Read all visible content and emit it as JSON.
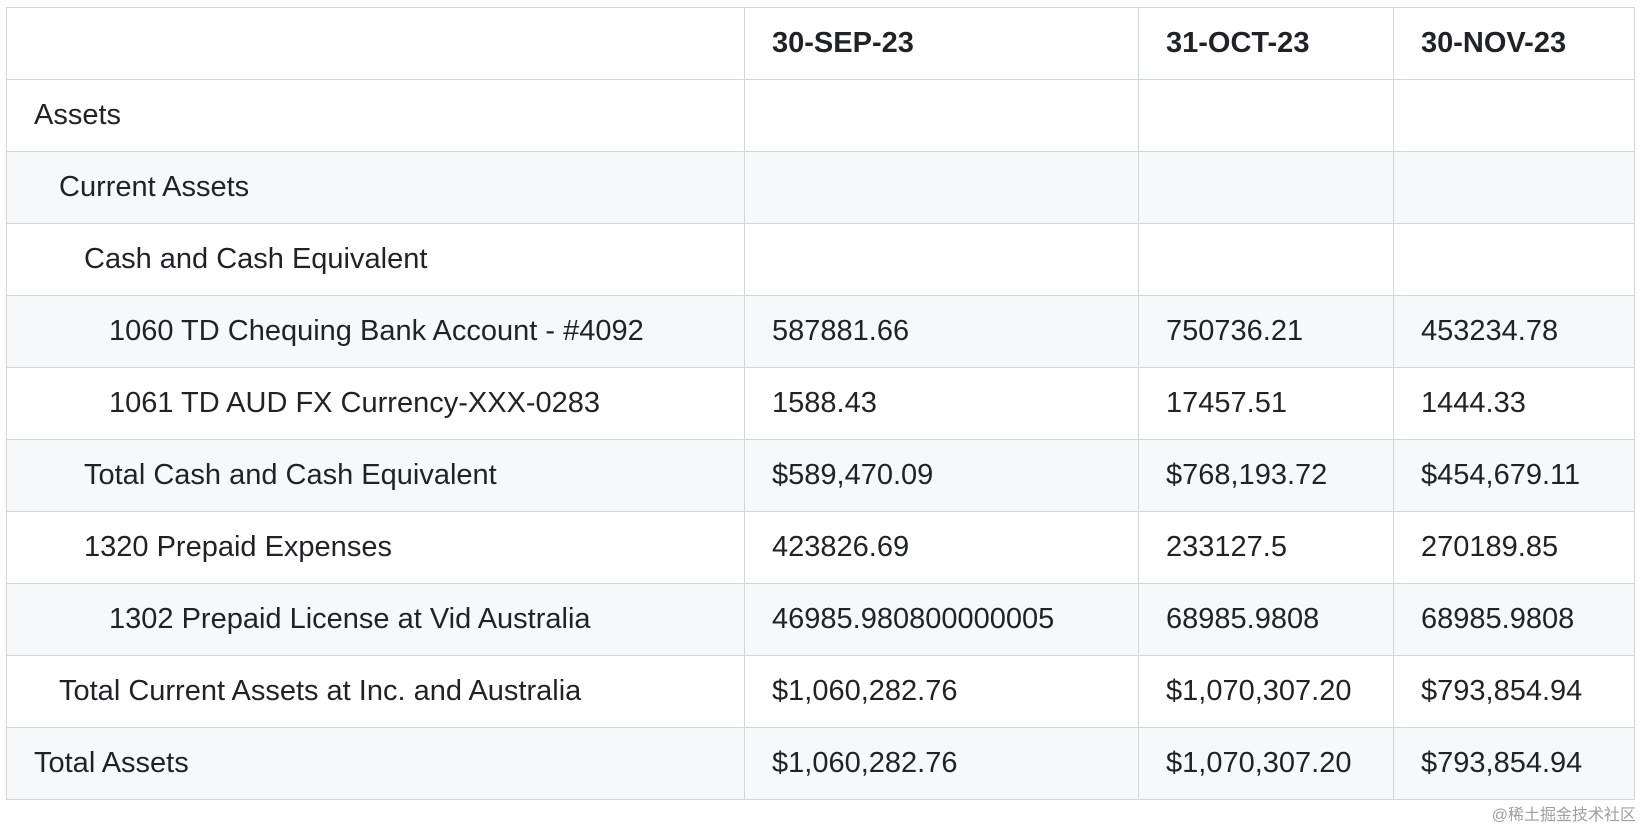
{
  "table": {
    "columns": [
      "30-SEP-23",
      "31-OCT-23",
      "30-NOV-23"
    ],
    "rows": [
      {
        "label": "Assets"
      },
      {
        "label": "Current Assets"
      },
      {
        "label": "Cash and Cash Equivalent"
      },
      {
        "label": "1060 TD Chequing Bank Account - #4092",
        "cells": [
          "587881.66",
          "750736.21",
          "453234.78"
        ]
      },
      {
        "label": "1061 TD AUD FX Currency-XXX-0283",
        "cells": [
          "1588.43",
          "17457.51",
          "1444.33"
        ]
      },
      {
        "label": "Total Cash and Cash Equivalent",
        "cells": [
          "$589,470.09",
          "$768,193.72",
          "$454,679.11"
        ]
      },
      {
        "label": "1320 Prepaid Expenses",
        "cells": [
          "423826.69",
          "233127.5",
          "270189.85"
        ]
      },
      {
        "label": "1302 Prepaid License at Vid Australia",
        "cells": [
          "46985.980800000005",
          "68985.9808",
          "68985.9808"
        ]
      },
      {
        "label": "Total Current Assets at Inc. and Australia",
        "cells": [
          "$1,060,282.76",
          "$1,070,307.20",
          "$793,854.94"
        ]
      },
      {
        "label": "Total Assets",
        "cells": [
          "$1,060,282.76",
          "$1,070,307.20",
          "$793,854.94"
        ]
      }
    ]
  },
  "watermark": "@稀土掘金技术社区"
}
